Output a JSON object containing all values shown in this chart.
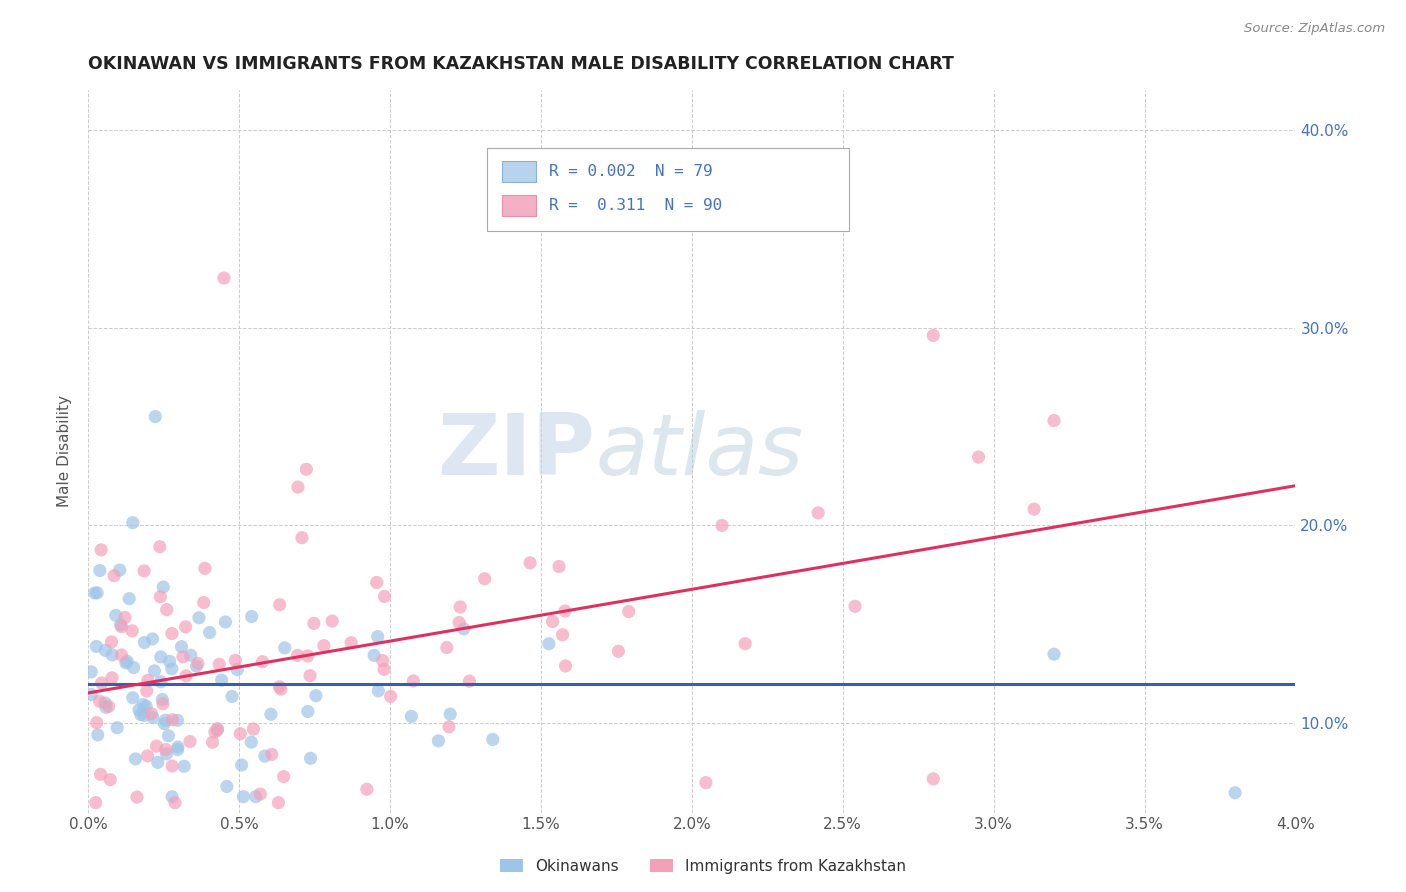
{
  "title": "OKINAWAN VS IMMIGRANTS FROM KAZAKHSTAN MALE DISABILITY CORRELATION CHART",
  "source": "Source: ZipAtlas.com",
  "ylabel": "Male Disability",
  "legend_labels": [
    "Okinawans",
    "Immigrants from Kazakhstan"
  ],
  "okinawan_color": "#9ec4e8",
  "kazakhstan_color": "#f4a0b8",
  "okinawan_line_color": "#3a5fa8",
  "kazakhstan_line_color": "#e03060",
  "watermark_zip": "ZIP",
  "watermark_atlas": "atlas",
  "xlim": [
    0.0,
    0.04
  ],
  "ylim": [
    0.055,
    0.42
  ],
  "yticks": [
    0.1,
    0.2,
    0.3,
    0.4
  ],
  "R_okinawan": 0.002,
  "N_okinawan": 79,
  "R_kazakhstan": 0.311,
  "N_kazakhstan": 90,
  "background_color": "#ffffff",
  "grid_color": "#cccccc",
  "right_tick_color": "#4472c4",
  "legend_text_color": "#4472c4"
}
